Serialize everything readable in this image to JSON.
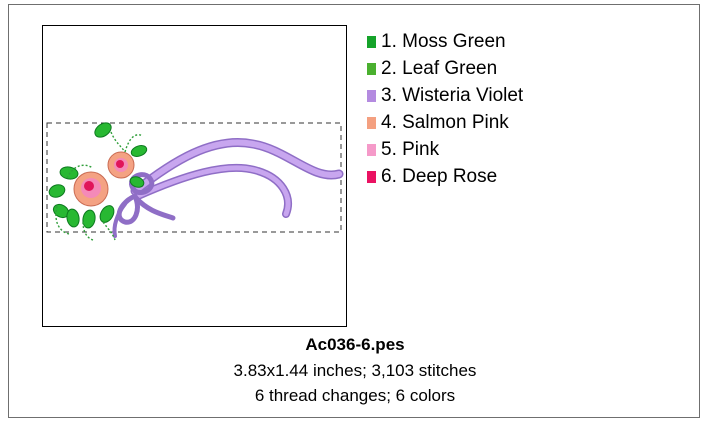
{
  "legend": {
    "items": [
      {
        "label": "1.  Moss Green",
        "color": "#15a32a"
      },
      {
        "label": "2.  Leaf Green",
        "color": "#4ab02f"
      },
      {
        "label": "3.  Wisteria Violet",
        "color": "#b48be0"
      },
      {
        "label": "4.  Salmon Pink",
        "color": "#f4a080"
      },
      {
        "label": "5.  Pink",
        "color": "#f59ac9"
      },
      {
        "label": "6.  Deep Rose",
        "color": "#ea1262"
      }
    ]
  },
  "file": {
    "name": "Ac036-6.pes",
    "dimensions": "3.83x1.44 inches; 3,103 stitches",
    "changes": "6 thread changes; 6 colors"
  },
  "design_icons": {
    "leaves": "leaf-shapes",
    "roses": "rose-shapes",
    "ribbon": "ribbon-bow"
  }
}
